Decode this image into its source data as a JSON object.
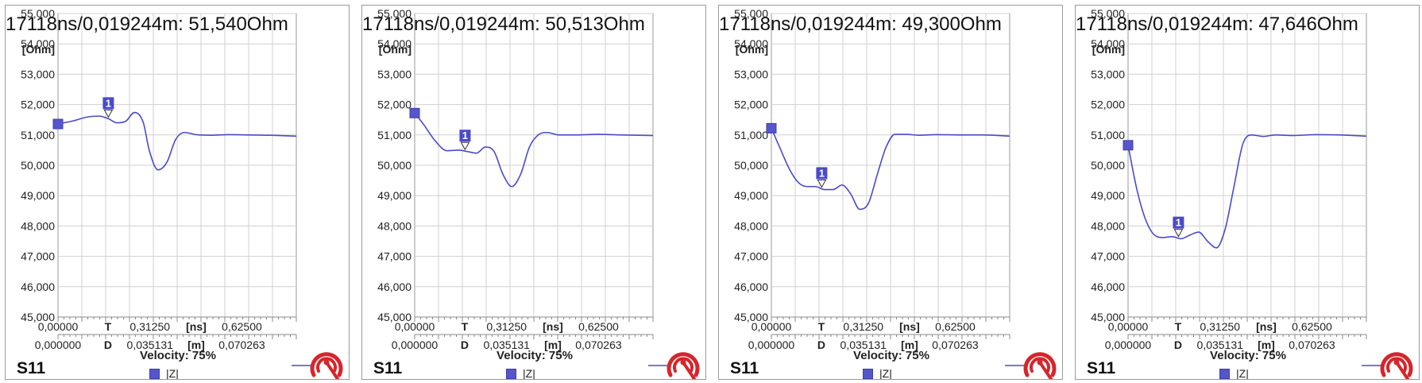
{
  "chart_data": [
    {
      "type": "line",
      "marker_readout": "17118ns/0,019244m: 51,540Ohm",
      "ylabel": "[Ohm]",
      "ylim": [
        45000,
        55000
      ],
      "y_ticks": [
        "55,000",
        "54,000",
        "53,000",
        "52,000",
        "51,000",
        "50,000",
        "49,000",
        "48,000",
        "47,000",
        "46,000",
        "45,000"
      ],
      "xlim_ns": [
        0,
        0.81
      ],
      "x_tick_labels_ns": [
        "0,00000",
        "0,31250",
        "0,62500"
      ],
      "x_tick_labels_m": [
        "0,000000",
        "0,035131",
        "0,070263"
      ],
      "time_axis_label": "T",
      "time_unit": "[ns]",
      "dist_axis_label": "D",
      "dist_unit": "[m]",
      "velocity": "Velocity: 75%",
      "sparam": "S11",
      "marker_label": "1",
      "marker_x_ns": 0.1712,
      "series": [
        {
          "name": "|Z|",
          "color": "#4a4acb",
          "x": [
            0,
            0.05,
            0.1,
            0.14,
            0.17,
            0.2,
            0.23,
            0.26,
            0.29,
            0.31,
            0.34,
            0.37,
            0.4,
            0.43,
            0.47,
            0.52,
            0.58,
            0.65,
            0.72,
            0.81
          ],
          "y": [
            51360,
            51460,
            51590,
            51620,
            51540,
            51400,
            51450,
            51740,
            51400,
            50500,
            49850,
            50100,
            50850,
            51080,
            51010,
            50990,
            51010,
            51000,
            50990,
            50960
          ]
        }
      ]
    },
    {
      "type": "line",
      "marker_readout": "17118ns/0,019244m: 50,513Ohm",
      "ylabel": "[Ohm]",
      "ylim": [
        45000,
        55000
      ],
      "y_ticks": [
        "55,000",
        "54,000",
        "53,000",
        "52,000",
        "51,000",
        "50,000",
        "49,000",
        "48,000",
        "47,000",
        "46,000",
        "45,000"
      ],
      "xlim_ns": [
        0,
        0.81
      ],
      "x_tick_labels_ns": [
        "0,00000",
        "0,31250",
        "0,62500"
      ],
      "x_tick_labels_m": [
        "0,000000",
        "0,035131",
        "0,070263"
      ],
      "time_axis_label": "T",
      "time_unit": "[ns]",
      "dist_axis_label": "D",
      "dist_unit": "[m]",
      "velocity": "Velocity: 75%",
      "sparam": "S11",
      "marker_label": "1",
      "marker_x_ns": 0.1712,
      "series": [
        {
          "name": "|Z|",
          "color": "#4a4acb",
          "x": [
            0,
            0.03,
            0.07,
            0.11,
            0.15,
            0.18,
            0.21,
            0.24,
            0.27,
            0.3,
            0.33,
            0.36,
            0.39,
            0.42,
            0.45,
            0.49,
            0.55,
            0.62,
            0.7,
            0.81
          ],
          "y": [
            51720,
            51350,
            50800,
            50480,
            50500,
            50450,
            50400,
            50600,
            50450,
            49700,
            49300,
            49700,
            50600,
            51000,
            51080,
            51000,
            51000,
            51020,
            51000,
            50980
          ]
        }
      ]
    },
    {
      "type": "line",
      "marker_readout": "17118ns/0,019244m: 49,300Ohm",
      "ylabel": "[Ohm]",
      "ylim": [
        45000,
        55000
      ],
      "y_ticks": [
        "55,000",
        "54,000",
        "53,000",
        "52,000",
        "51,000",
        "50,000",
        "49,000",
        "48,000",
        "47,000",
        "46,000",
        "45,000"
      ],
      "xlim_ns": [
        0,
        0.81
      ],
      "x_tick_labels_ns": [
        "0,00000",
        "0,31250",
        "0,62500"
      ],
      "x_tick_labels_m": [
        "0,000000",
        "0,035131",
        "0,070263"
      ],
      "time_axis_label": "T",
      "time_unit": "[ns]",
      "dist_axis_label": "D",
      "dist_unit": "[m]",
      "velocity": "Velocity: 75%",
      "sparam": "S11",
      "marker_label": "1",
      "marker_x_ns": 0.1712,
      "series": [
        {
          "name": "|Z|",
          "color": "#4a4acb",
          "x": [
            0,
            0.03,
            0.06,
            0.09,
            0.12,
            0.15,
            0.18,
            0.21,
            0.24,
            0.27,
            0.3,
            0.33,
            0.36,
            0.39,
            0.42,
            0.46,
            0.5,
            0.56,
            0.64,
            0.72,
            0.81
          ],
          "y": [
            51220,
            50550,
            49900,
            49450,
            49300,
            49300,
            49200,
            49200,
            49350,
            49050,
            48550,
            48750,
            49700,
            50600,
            51020,
            51020,
            50990,
            51010,
            51000,
            51000,
            50960
          ]
        }
      ]
    },
    {
      "type": "line",
      "marker_readout": "17118ns/0,019244m: 47,646Ohm",
      "ylabel": "[Ohm]",
      "ylim": [
        45000,
        55000
      ],
      "y_ticks": [
        "55,000",
        "54,000",
        "53,000",
        "52,000",
        "51,000",
        "50,000",
        "49,000",
        "48,000",
        "47,000",
        "46,000",
        "45,000"
      ],
      "xlim_ns": [
        0,
        0.81
      ],
      "x_tick_labels_ns": [
        "0,00000",
        "0,31250",
        "0,62500"
      ],
      "x_tick_labels_m": [
        "0,000000",
        "0,035131",
        "0,070263"
      ],
      "time_axis_label": "T",
      "time_unit": "[ns]",
      "dist_axis_label": "D",
      "dist_unit": "[m]",
      "velocity": "Velocity: 75%",
      "sparam": "S11",
      "marker_label": "1",
      "marker_x_ns": 0.1712,
      "series": [
        {
          "name": "|Z|",
          "color": "#4a4acb",
          "x": [
            0,
            0.03,
            0.06,
            0.09,
            0.12,
            0.15,
            0.18,
            0.21,
            0.24,
            0.27,
            0.3,
            0.33,
            0.36,
            0.39,
            0.42,
            0.46,
            0.5,
            0.56,
            0.64,
            0.72,
            0.81
          ],
          "y": [
            50660,
            49200,
            48200,
            47700,
            47620,
            47650,
            47580,
            47700,
            47800,
            47500,
            47280,
            47900,
            49300,
            50700,
            51000,
            50950,
            51000,
            50980,
            51010,
            51000,
            50960
          ]
        }
      ]
    }
  ]
}
